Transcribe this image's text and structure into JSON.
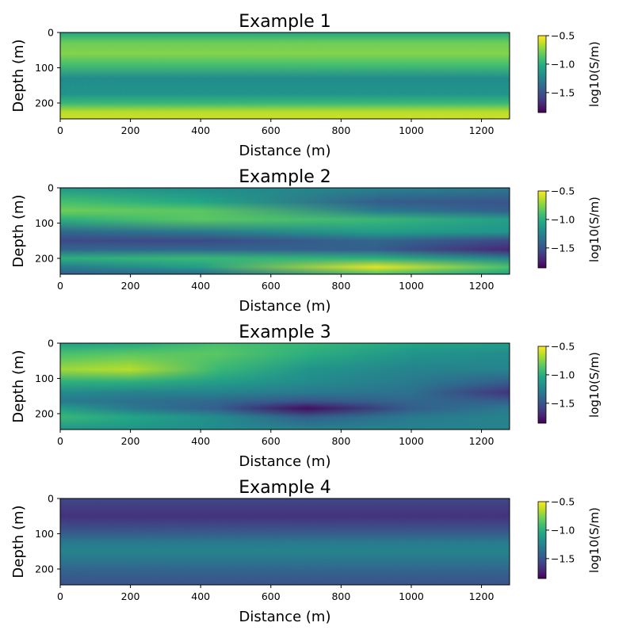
{
  "chart_data": [
    {
      "type": "heatmap",
      "title": "Example 1",
      "xlabel": "Distance (m)",
      "ylabel": "Depth (m)",
      "xlim": [
        0,
        1280
      ],
      "ylim": [
        245,
        0
      ],
      "xticks": [
        0,
        200,
        400,
        600,
        800,
        1000,
        1200
      ],
      "yticks": [
        0,
        100,
        200
      ],
      "colorbar": {
        "label": "log10(S/m)",
        "range": [
          -1.85,
          -0.5
        ],
        "ticks": [
          -0.5,
          -1.0,
          -1.5
        ],
        "tick_labels": [
          "−0.5",
          "−1.0",
          "−1.5"
        ]
      },
      "depth_profile_m": [
        0,
        30,
        60,
        90,
        130,
        175,
        200,
        225,
        245
      ],
      "distance_profiles_m": [
        0,
        1280
      ],
      "log10_conductivity": [
        [
          [
            -1.05,
            -0.8,
            -0.75,
            -0.9,
            -1.2,
            -1.15,
            -0.95,
            -0.65,
            -0.6
          ],
          [
            -1.05,
            -0.8,
            -0.75,
            -0.9,
            -1.2,
            -1.15,
            -0.95,
            -0.65,
            -0.6
          ]
        ]
      ]
    },
    {
      "type": "heatmap",
      "title": "Example 2",
      "xlabel": "Distance (m)",
      "ylabel": "Depth (m)",
      "xlim": [
        0,
        1280
      ],
      "ylim": [
        245,
        0
      ],
      "xticks": [
        0,
        200,
        400,
        600,
        800,
        1000,
        1200
      ],
      "yticks": [
        0,
        100,
        200
      ],
      "colorbar": {
        "label": "log10(S/m)",
        "range": [
          -1.85,
          -0.5
        ],
        "ticks": [
          -0.5,
          -1.0,
          -1.5
        ],
        "tick_labels": [
          "−0.5",
          "−1.0",
          "−1.5"
        ]
      },
      "depth_profile_m": [
        0,
        40,
        65,
        90,
        125,
        150,
        175,
        200,
        225,
        245
      ],
      "distance_profiles_m": [
        0,
        400,
        900,
        1280
      ],
      "log10_conductivity": [
        [
          -1.15,
          -0.9,
          -0.8,
          -1.0,
          -1.4,
          -1.55,
          -1.4,
          -1.0,
          -1.3,
          -1.45
        ],
        [
          -1.2,
          -1.05,
          -0.85,
          -0.85,
          -1.3,
          -1.55,
          -1.4,
          -0.95,
          -1.1,
          -1.4
        ],
        [
          -1.25,
          -1.45,
          -1.3,
          -0.95,
          -1.1,
          -1.4,
          -1.45,
          -1.0,
          -0.55,
          -0.9
        ],
        [
          -1.3,
          -1.5,
          -1.45,
          -1.1,
          -1.15,
          -1.55,
          -1.7,
          -1.25,
          -0.9,
          -1.1
        ]
      ]
    },
    {
      "type": "heatmap",
      "title": "Example 3",
      "xlabel": "Distance (m)",
      "ylabel": "Depth (m)",
      "xlim": [
        0,
        1280
      ],
      "ylim": [
        245,
        0
      ],
      "xticks": [
        0,
        200,
        400,
        600,
        800,
        1000,
        1200
      ],
      "yticks": [
        0,
        100,
        200
      ],
      "colorbar": {
        "label": "log10(S/m)",
        "range": [
          -1.85,
          -0.5
        ],
        "ticks": [
          -0.5,
          -1.0,
          -1.5
        ],
        "tick_labels": [
          "−0.5",
          "−1.0",
          "−1.5"
        ]
      },
      "depth_profile_m": [
        0,
        30,
        75,
        110,
        140,
        165,
        185,
        210,
        245
      ],
      "distance_profiles_m": [
        0,
        200,
        450,
        700,
        1000,
        1280
      ],
      "log10_conductivity": [
        [
          -1.1,
          -0.9,
          -0.7,
          -1.0,
          -1.2,
          -1.3,
          -1.1,
          -0.95,
          -1.15
        ],
        [
          -1.05,
          -0.85,
          -0.65,
          -1.0,
          -1.25,
          -1.35,
          -1.3,
          -1.05,
          -1.15
        ],
        [
          -0.9,
          -0.85,
          -0.95,
          -1.1,
          -1.25,
          -1.4,
          -1.45,
          -1.2,
          -1.2
        ],
        [
          -0.95,
          -1.0,
          -1.15,
          -1.2,
          -1.3,
          -1.5,
          -1.8,
          -1.45,
          -1.25
        ],
        [
          -1.05,
          -1.15,
          -1.25,
          -1.3,
          -1.35,
          -1.4,
          -1.45,
          -1.3,
          -1.25
        ],
        [
          -1.1,
          -1.2,
          -1.25,
          -1.45,
          -1.65,
          -1.45,
          -1.3,
          -1.25,
          -1.25
        ]
      ]
    },
    {
      "type": "heatmap",
      "title": "Example 4",
      "xlabel": "Distance (m)",
      "ylabel": "Depth (m)",
      "xlim": [
        0,
        1280
      ],
      "ylim": [
        245,
        0
      ],
      "xticks": [
        0,
        200,
        400,
        600,
        800,
        1000,
        1200
      ],
      "yticks": [
        0,
        100,
        200
      ],
      "colorbar": {
        "label": "log10(S/m)",
        "range": [
          -1.85,
          -0.5
        ],
        "ticks": [
          -0.5,
          -1.0,
          -1.5
        ],
        "tick_labels": [
          "−0.5",
          "−1.0",
          "−1.5"
        ]
      },
      "depth_profile_m": [
        0,
        20,
        50,
        90,
        125,
        150,
        185,
        215,
        245
      ],
      "distance_profiles_m": [
        0,
        1280
      ],
      "log10_conductivity": [
        [
          [
            -1.55,
            -1.6,
            -1.65,
            -1.5,
            -1.3,
            -1.25,
            -1.35,
            -1.45,
            -1.5
          ],
          [
            -1.55,
            -1.6,
            -1.65,
            -1.5,
            -1.3,
            -1.25,
            -1.35,
            -1.45,
            -1.5
          ]
        ]
      ]
    }
  ]
}
